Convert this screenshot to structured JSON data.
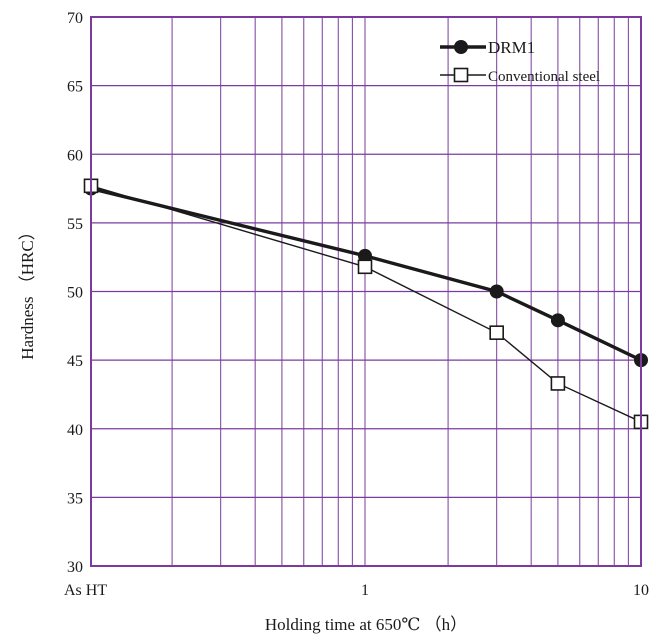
{
  "chart_data": {
    "type": "line",
    "xscale": "log",
    "xlabel": "Holding time at 650℃ （h）",
    "ylabel": "Hardness （HRC）",
    "ylim": [
      30,
      70
    ],
    "yticks": [
      "30",
      "35",
      "40",
      "45",
      "50",
      "55",
      "60",
      "65",
      "70"
    ],
    "xtick_labels": {
      "as_ht": "As HT",
      "one": "1",
      "ten": "10"
    },
    "grid": true,
    "legend_position": "top-right",
    "colors": {
      "grid": "#7b3b9e",
      "line": "#1a1a1a"
    },
    "series": [
      {
        "name": "DRM1",
        "marker": "filled-circle",
        "x": [
          "As HT",
          1,
          3,
          5,
          10
        ],
        "y": [
          57.5,
          52.6,
          50.0,
          47.9,
          45.0
        ]
      },
      {
        "name": "Conventional steel",
        "marker": "open-square",
        "x": [
          "As HT",
          1,
          3,
          5,
          10
        ],
        "y": [
          57.7,
          51.8,
          47.0,
          43.3,
          40.5
        ]
      }
    ]
  }
}
